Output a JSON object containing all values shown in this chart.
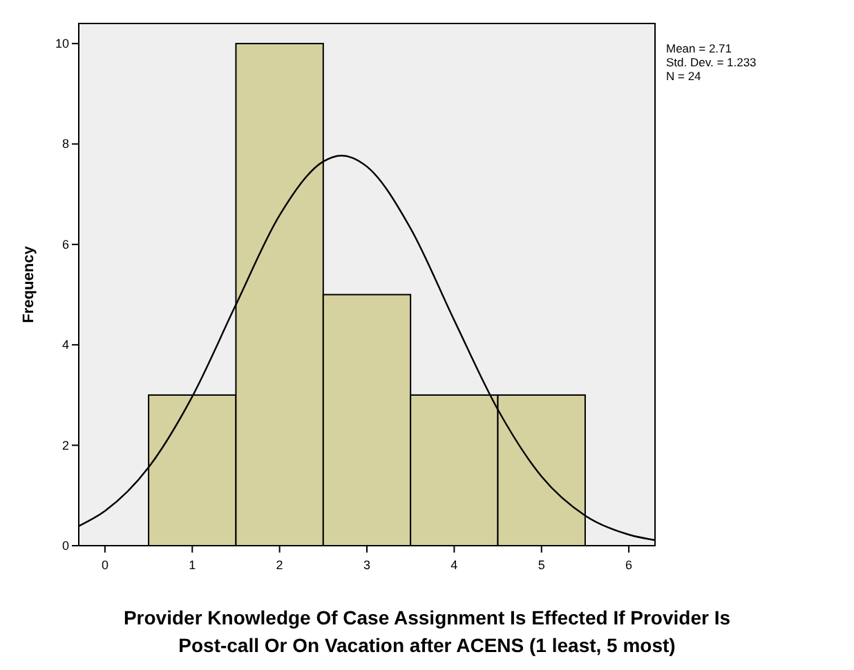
{
  "chart_data": {
    "type": "histogram",
    "xlabel": "Provider Knowledge Of Case Assignment Is Effected If Provider Is Post-call Or On Vacation after ACENS (1 least, 5 most)",
    "ylabel": "Frequency",
    "bins": [
      0.5,
      1.5,
      2.5,
      3.5,
      4.5,
      5.5
    ],
    "values": [
      3,
      10,
      5,
      3,
      3
    ],
    "color": "#d6d2a0",
    "series": [
      {
        "type": "line",
        "color": "#000000",
        "x": [
          -0.3,
          0,
          0.5,
          1,
          1.5,
          2,
          2.5,
          2.71,
          3,
          3.5,
          4,
          4.5,
          5,
          5.5,
          6,
          6.3
        ],
        "values": [
          0.39,
          0.69,
          1.56,
          2.97,
          4.8,
          6.58,
          7.65,
          7.77,
          7.55,
          6.32,
          4.49,
          2.71,
          1.38,
          0.6,
          0.22,
          0.11
        ]
      }
    ],
    "xlim": [
      -0.3,
      6.3
    ],
    "xticks": [
      0,
      1,
      2,
      3,
      4,
      5,
      6
    ],
    "ylim": [
      0,
      10.4
    ],
    "yticks": [
      0,
      2,
      4,
      6,
      8,
      10
    ],
    "annotations": [
      "Mean = 2.71",
      "Std. Dev. = 1.233",
      "N = 24"
    ],
    "grid": false,
    "marker": "none",
    "line_style": "solid"
  }
}
